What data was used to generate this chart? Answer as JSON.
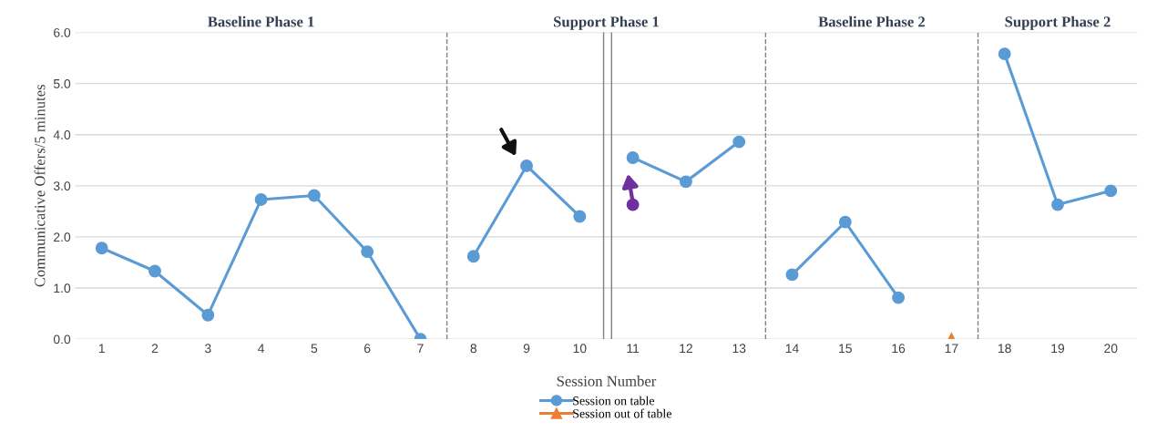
{
  "chart_data": {
    "type": "line",
    "xlabel": "Session Number",
    "ylabel": "Communicative Offers/5 minutes",
    "xlim": [
      0.5,
      20.5
    ],
    "xticks": [
      1,
      2,
      3,
      4,
      5,
      6,
      7,
      8,
      9,
      10,
      11,
      12,
      13,
      14,
      15,
      16,
      17,
      18,
      19,
      20
    ],
    "ylim": [
      0,
      6
    ],
    "yticks": [
      {
        "value": 0,
        "label": "0.0"
      },
      {
        "value": 1,
        "label": "1.0"
      },
      {
        "value": 2,
        "label": "2.0"
      },
      {
        "value": 3,
        "label": "3.0"
      },
      {
        "value": 4,
        "label": "4.0"
      },
      {
        "value": 5,
        "label": "5.0"
      },
      {
        "value": 6,
        "label": "6.0"
      }
    ],
    "grid": "y",
    "legend": "bottom",
    "series": [
      {
        "name": "Session on table",
        "marker": "circle",
        "color": "#5b9bd5",
        "x": [
          1,
          2,
          3,
          4,
          5,
          6,
          7,
          7.5,
          8,
          9,
          10,
          10.5,
          11,
          12,
          13,
          13.5,
          14,
          15,
          16,
          17,
          18,
          19,
          20
        ],
        "values": [
          1.78,
          1.33,
          0.47,
          2.73,
          2.81,
          1.71,
          0.0,
          null,
          1.62,
          3.39,
          2.4,
          null,
          3.55,
          3.08,
          3.86,
          null,
          1.26,
          2.29,
          0.81,
          null,
          5.58,
          2.63,
          2.9
        ]
      },
      {
        "name": "Session out of table",
        "type": "scatter",
        "marker": "triangle",
        "color": "#ed7d31",
        "x": [
          17
        ],
        "values": [
          0.0
        ]
      },
      {
        "type": "scatter",
        "marker": "circle",
        "color": "#7030a0",
        "x": [
          11
        ],
        "values": [
          2.63
        ]
      }
    ],
    "ref_lines": [
      {
        "axis": "x",
        "value": 7.5,
        "line_style": "dashed",
        "color": "#808080"
      },
      {
        "axis": "x",
        "value": 10.45,
        "line_style": "solid",
        "color": "#808080"
      },
      {
        "axis": "x",
        "value": 10.6,
        "line_style": "solid",
        "color": "#808080"
      },
      {
        "axis": "x",
        "value": 13.5,
        "line_style": "dashed",
        "color": "#808080"
      },
      {
        "axis": "x",
        "value": 17.5,
        "line_style": "dashed",
        "color": "#808080"
      }
    ],
    "annotations": [
      "Baseline Phase 1",
      "Support Phase 1",
      "Baseline Phase 2",
      "Support Phase 2"
    ]
  }
}
